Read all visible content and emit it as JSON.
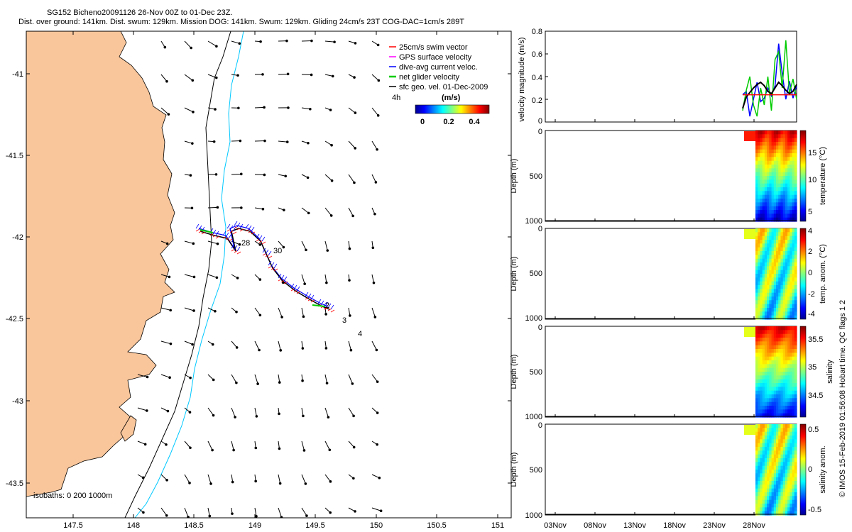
{
  "title": {
    "line1": "SG152 Bicheno20091126 26-Nov 00Z to 01-Dec 23Z.",
    "line2": "Dist. over ground: 141km. Dist. swum: 129km. Mission DOG: 141km. Swum: 129km. Gliding 24cm/s 23T COG-DAC=1cm/s 289T"
  },
  "credit": "© IMOS 15-Feb-2019 01:56:08 Hobart time. QC flags 1  2",
  "map": {
    "legend": [
      {
        "label": "25cm/s swim vector",
        "color": "#ff0000"
      },
      {
        "label": "GPS surface velocity",
        "color": "#ff00ff"
      },
      {
        "label": "dive-avg current veloc.",
        "color": "#0000ff"
      },
      {
        "label": "net glider velocity",
        "color": "#00cc00"
      },
      {
        "label": "sfc geo. vel. 01-Dec-2009",
        "color": "#000000"
      }
    ],
    "vec_label": "4h",
    "colorbar_label": "(m/s)",
    "colorbar_ticks": [
      "0",
      "0.2",
      "0.4"
    ],
    "isobath_label": "isobaths: 0   200   1000m",
    "x_ticks": [
      "147.5",
      "148",
      "148.5",
      "149",
      "149.5",
      "150",
      "150.5",
      "151"
    ],
    "y_ticks": [
      "-41",
      "-41.5",
      "-42",
      "-42.5",
      "-43",
      "-43.5"
    ],
    "day_labels": [
      "28",
      "30",
      "2",
      "3",
      "4"
    ]
  },
  "chart_data": [
    {
      "type": "line",
      "ylabel": "velocity magnitude (m/s)",
      "ylim": [
        0,
        0.8
      ],
      "y_ticks": [
        "0",
        "0.2",
        "0.4",
        "0.6",
        "0.8"
      ],
      "x": [
        26.1,
        26.5,
        26.9,
        27.3,
        27.7,
        28.1,
        28.5,
        28.9,
        29.3,
        29.7,
        30.1,
        30.5,
        30.9,
        31.3,
        31.7,
        32.1
      ],
      "series": [
        {
          "color": "#0000ff",
          "values": [
            0.24,
            0.27,
            0.05,
            0.2,
            0.35,
            0.18,
            0.21,
            0.3,
            0.23,
            0.32,
            0.69,
            0.43,
            0.2,
            0.36,
            0.21,
            0.32
          ]
        },
        {
          "color": "#00cc00",
          "values": [
            0.1,
            0.28,
            0.4,
            0.15,
            0.05,
            0.3,
            0.15,
            0.4,
            0.1,
            0.55,
            0.62,
            0.3,
            0.72,
            0.25,
            0.38,
            0.2
          ]
        },
        {
          "color": "#000000",
          "values": [
            0.12,
            0.22,
            0.26,
            0.3,
            0.33,
            0.35,
            0.32,
            0.27,
            0.25,
            0.3,
            0.35,
            0.32,
            0.28,
            0.25,
            0.27,
            0.33
          ]
        },
        {
          "color": "#ff0000",
          "values": [
            0.24,
            0.24,
            0.24,
            0.24,
            0.24,
            0.24,
            0.24,
            0.24,
            0.24,
            0.24,
            0.24,
            0.24,
            0.24,
            0.24,
            0.24,
            0.24
          ]
        }
      ]
    },
    {
      "type": "heatmap",
      "ylabel": "Depth (m)",
      "cbar_label": "temperature (°C)",
      "y_ticks": [
        "0",
        "500",
        "1000"
      ],
      "cbar_ticks": [
        "15",
        "10",
        "5"
      ],
      "clim": [
        4,
        18
      ]
    },
    {
      "type": "heatmap",
      "ylabel": "Depth (m)",
      "cbar_label": "temp. anom. (°C)",
      "y_ticks": [
        "0",
        "500",
        "1000"
      ],
      "cbar_ticks": [
        "4",
        "2",
        "0",
        "-2",
        "-4"
      ],
      "clim": [
        -4,
        4
      ]
    },
    {
      "type": "heatmap",
      "ylabel": "Depth (m)",
      "cbar_label": "salinity",
      "y_ticks": [
        "0",
        "500",
        "1000"
      ],
      "cbar_ticks": [
        "35.5",
        "35",
        "34.5"
      ],
      "clim": [
        34.2,
        35.6
      ]
    },
    {
      "type": "heatmap",
      "ylabel": "Depth (m)",
      "cbar_label": "salinity anom.",
      "y_ticks": [
        "0",
        "500",
        "1000"
      ],
      "cbar_ticks": [
        "0.5",
        "0",
        "-0.5"
      ],
      "clim": [
        -0.6,
        0.6
      ]
    }
  ],
  "time_axis": {
    "ticks": [
      "03Nov",
      "08Nov",
      "13Nov",
      "18Nov",
      "23Nov",
      "28Nov"
    ]
  }
}
